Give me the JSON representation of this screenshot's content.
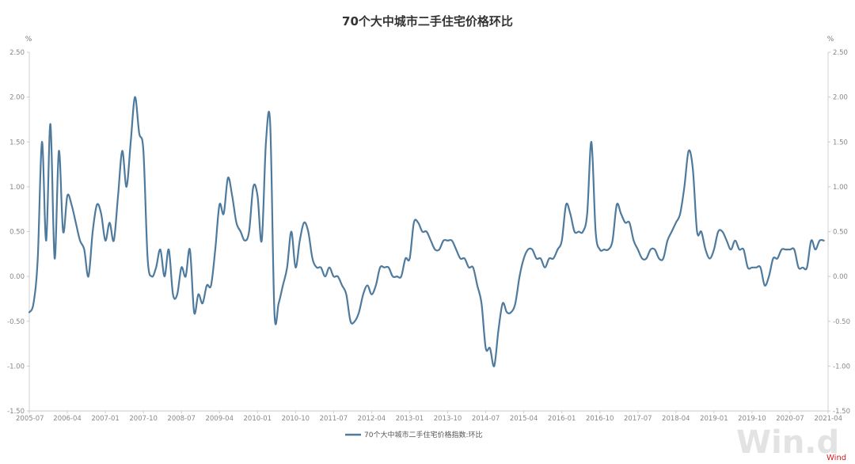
{
  "chart_data": {
    "type": "line",
    "title": "70个大中城市二手住宅价格环比",
    "y_unit_left": "%",
    "y_unit_right": "%",
    "ylim": [
      -1.5,
      2.5
    ],
    "y_ticks": [
      "2.50",
      "2.00",
      "1.50",
      "1.00",
      "0.50",
      "0.00",
      "-0.50",
      "-1.00",
      "-1.50"
    ],
    "x_tick_labels": [
      "2005-07",
      "2006-04",
      "2007-01",
      "2007-10",
      "2008-07",
      "2009-04",
      "2010-01",
      "2010-10",
      "2011-07",
      "2012-04",
      "2013-01",
      "2013-10",
      "2014-07",
      "2015-04",
      "2016-01",
      "2016-10",
      "2017-07",
      "2018-04",
      "2019-01",
      "2019-10",
      "2020-07",
      "2021-04"
    ],
    "x_start": "2005-07",
    "x_end": "2021-04",
    "legend_position": "bottom-center",
    "grid": false,
    "series": [
      {
        "name": "70个大中城市二手住宅价格指数:环比",
        "color": "#4e7a9e",
        "points": [
          [
            "2005-07",
            -0.4
          ],
          [
            "2005-08",
            -0.3
          ],
          [
            "2005-09",
            0.2
          ],
          [
            "2005-10",
            1.5
          ],
          [
            "2005-11",
            0.4
          ],
          [
            "2005-12",
            1.7
          ],
          [
            "2006-01",
            0.2
          ],
          [
            "2006-02",
            1.4
          ],
          [
            "2006-03",
            0.5
          ],
          [
            "2006-04",
            0.9
          ],
          [
            "2006-05",
            0.8
          ],
          [
            "2006-06",
            0.6
          ],
          [
            "2006-07",
            0.4
          ],
          [
            "2006-08",
            0.3
          ],
          [
            "2006-09",
            0.0
          ],
          [
            "2006-10",
            0.5
          ],
          [
            "2006-11",
            0.8
          ],
          [
            "2006-12",
            0.7
          ],
          [
            "2007-01",
            0.4
          ],
          [
            "2007-02",
            0.6
          ],
          [
            "2007-03",
            0.4
          ],
          [
            "2007-04",
            0.9
          ],
          [
            "2007-05",
            1.4
          ],
          [
            "2007-06",
            1.0
          ],
          [
            "2007-07",
            1.5
          ],
          [
            "2007-08",
            2.0
          ],
          [
            "2007-09",
            1.6
          ],
          [
            "2007-10",
            1.4
          ],
          [
            "2007-11",
            0.2
          ],
          [
            "2007-12",
            0.0
          ],
          [
            "2008-01",
            0.1
          ],
          [
            "2008-02",
            0.3
          ],
          [
            "2008-03",
            0.0
          ],
          [
            "2008-04",
            0.3
          ],
          [
            "2008-05",
            -0.2
          ],
          [
            "2008-06",
            -0.2
          ],
          [
            "2008-07",
            0.1
          ],
          [
            "2008-08",
            0.0
          ],
          [
            "2008-09",
            0.3
          ],
          [
            "2008-10",
            -0.4
          ],
          [
            "2008-11",
            -0.2
          ],
          [
            "2008-12",
            -0.3
          ],
          [
            "2009-01",
            -0.1
          ],
          [
            "2009-02",
            -0.1
          ],
          [
            "2009-03",
            0.3
          ],
          [
            "2009-04",
            0.8
          ],
          [
            "2009-05",
            0.7
          ],
          [
            "2009-06",
            1.1
          ],
          [
            "2009-07",
            0.9
          ],
          [
            "2009-08",
            0.6
          ],
          [
            "2009-09",
            0.5
          ],
          [
            "2009-10",
            0.4
          ],
          [
            "2009-11",
            0.5
          ],
          [
            "2009-12",
            1.0
          ],
          [
            "2010-01",
            0.9
          ],
          [
            "2010-02",
            0.4
          ],
          [
            "2010-03",
            1.5
          ],
          [
            "2010-04",
            1.7
          ],
          [
            "2010-05",
            -0.4
          ],
          [
            "2010-06",
            -0.3
          ],
          [
            "2010-07",
            -0.1
          ],
          [
            "2010-08",
            0.1
          ],
          [
            "2010-09",
            0.5
          ],
          [
            "2010-10",
            0.1
          ],
          [
            "2010-11",
            0.4
          ],
          [
            "2010-12",
            0.6
          ],
          [
            "2011-01",
            0.5
          ],
          [
            "2011-02",
            0.2
          ],
          [
            "2011-03",
            0.1
          ],
          [
            "2011-04",
            0.1
          ],
          [
            "2011-05",
            0.0
          ],
          [
            "2011-06",
            0.1
          ],
          [
            "2011-07",
            0.0
          ],
          [
            "2011-08",
            0.0
          ],
          [
            "2011-09",
            -0.1
          ],
          [
            "2011-10",
            -0.2
          ],
          [
            "2011-11",
            -0.5
          ],
          [
            "2011-12",
            -0.5
          ],
          [
            "2012-01",
            -0.4
          ],
          [
            "2012-02",
            -0.2
          ],
          [
            "2012-03",
            -0.1
          ],
          [
            "2012-04",
            -0.2
          ],
          [
            "2012-05",
            -0.1
          ],
          [
            "2012-06",
            0.1
          ],
          [
            "2012-07",
            0.1
          ],
          [
            "2012-08",
            0.1
          ],
          [
            "2012-09",
            0.0
          ],
          [
            "2012-10",
            0.0
          ],
          [
            "2012-11",
            0.0
          ],
          [
            "2012-12",
            0.2
          ],
          [
            "2013-01",
            0.2
          ],
          [
            "2013-02",
            0.6
          ],
          [
            "2013-03",
            0.6
          ],
          [
            "2013-04",
            0.5
          ],
          [
            "2013-05",
            0.5
          ],
          [
            "2013-06",
            0.4
          ],
          [
            "2013-07",
            0.3
          ],
          [
            "2013-08",
            0.3
          ],
          [
            "2013-09",
            0.4
          ],
          [
            "2013-10",
            0.4
          ],
          [
            "2013-11",
            0.4
          ],
          [
            "2013-12",
            0.3
          ],
          [
            "2014-01",
            0.2
          ],
          [
            "2014-02",
            0.2
          ],
          [
            "2014-03",
            0.1
          ],
          [
            "2014-04",
            0.1
          ],
          [
            "2014-05",
            -0.1
          ],
          [
            "2014-06",
            -0.3
          ],
          [
            "2014-07",
            -0.8
          ],
          [
            "2014-08",
            -0.8
          ],
          [
            "2014-09",
            -1.0
          ],
          [
            "2014-10",
            -0.6
          ],
          [
            "2014-11",
            -0.3
          ],
          [
            "2014-12",
            -0.4
          ],
          [
            "2015-01",
            -0.4
          ],
          [
            "2015-02",
            -0.3
          ],
          [
            "2015-03",
            0.0
          ],
          [
            "2015-04",
            0.2
          ],
          [
            "2015-05",
            0.3
          ],
          [
            "2015-06",
            0.3
          ],
          [
            "2015-07",
            0.2
          ],
          [
            "2015-08",
            0.2
          ],
          [
            "2015-09",
            0.1
          ],
          [
            "2015-10",
            0.2
          ],
          [
            "2015-11",
            0.2
          ],
          [
            "2015-12",
            0.3
          ],
          [
            "2016-01",
            0.4
          ],
          [
            "2016-02",
            0.8
          ],
          [
            "2016-03",
            0.7
          ],
          [
            "2016-04",
            0.5
          ],
          [
            "2016-05",
            0.5
          ],
          [
            "2016-06",
            0.5
          ],
          [
            "2016-07",
            0.7
          ],
          [
            "2016-08",
            1.5
          ],
          [
            "2016-09",
            0.5
          ],
          [
            "2016-10",
            0.3
          ],
          [
            "2016-11",
            0.3
          ],
          [
            "2016-12",
            0.3
          ],
          [
            "2017-01",
            0.4
          ],
          [
            "2017-02",
            0.8
          ],
          [
            "2017-03",
            0.7
          ],
          [
            "2017-04",
            0.6
          ],
          [
            "2017-05",
            0.6
          ],
          [
            "2017-06",
            0.4
          ],
          [
            "2017-07",
            0.3
          ],
          [
            "2017-08",
            0.2
          ],
          [
            "2017-09",
            0.2
          ],
          [
            "2017-10",
            0.3
          ],
          [
            "2017-11",
            0.3
          ],
          [
            "2017-12",
            0.2
          ],
          [
            "2018-01",
            0.2
          ],
          [
            "2018-02",
            0.4
          ],
          [
            "2018-03",
            0.5
          ],
          [
            "2018-04",
            0.6
          ],
          [
            "2018-05",
            0.7
          ],
          [
            "2018-06",
            1.0
          ],
          [
            "2018-07",
            1.4
          ],
          [
            "2018-08",
            1.2
          ],
          [
            "2018-09",
            0.5
          ],
          [
            "2018-10",
            0.5
          ],
          [
            "2018-11",
            0.3
          ],
          [
            "2018-12",
            0.2
          ],
          [
            "2019-01",
            0.3
          ],
          [
            "2019-02",
            0.5
          ],
          [
            "2019-03",
            0.5
          ],
          [
            "2019-04",
            0.4
          ],
          [
            "2019-05",
            0.3
          ],
          [
            "2019-06",
            0.4
          ],
          [
            "2019-07",
            0.3
          ],
          [
            "2019-08",
            0.3
          ],
          [
            "2019-09",
            0.1
          ],
          [
            "2019-10",
            0.1
          ],
          [
            "2019-11",
            0.1
          ],
          [
            "2019-12",
            0.1
          ],
          [
            "2020-01",
            -0.1
          ],
          [
            "2020-02",
            0.0
          ],
          [
            "2020-03",
            0.2
          ],
          [
            "2020-04",
            0.2
          ],
          [
            "2020-05",
            0.3
          ],
          [
            "2020-06",
            0.3
          ],
          [
            "2020-07",
            0.3
          ],
          [
            "2020-08",
            0.3
          ],
          [
            "2020-09",
            0.1
          ],
          [
            "2020-10",
            0.1
          ],
          [
            "2020-11",
            0.1
          ],
          [
            "2020-12",
            0.4
          ],
          [
            "2021-01",
            0.3
          ],
          [
            "2021-02",
            0.4
          ],
          [
            "2021-03",
            0.4
          ]
        ]
      }
    ]
  },
  "watermark": "Win.d",
  "source_label": "Wind"
}
